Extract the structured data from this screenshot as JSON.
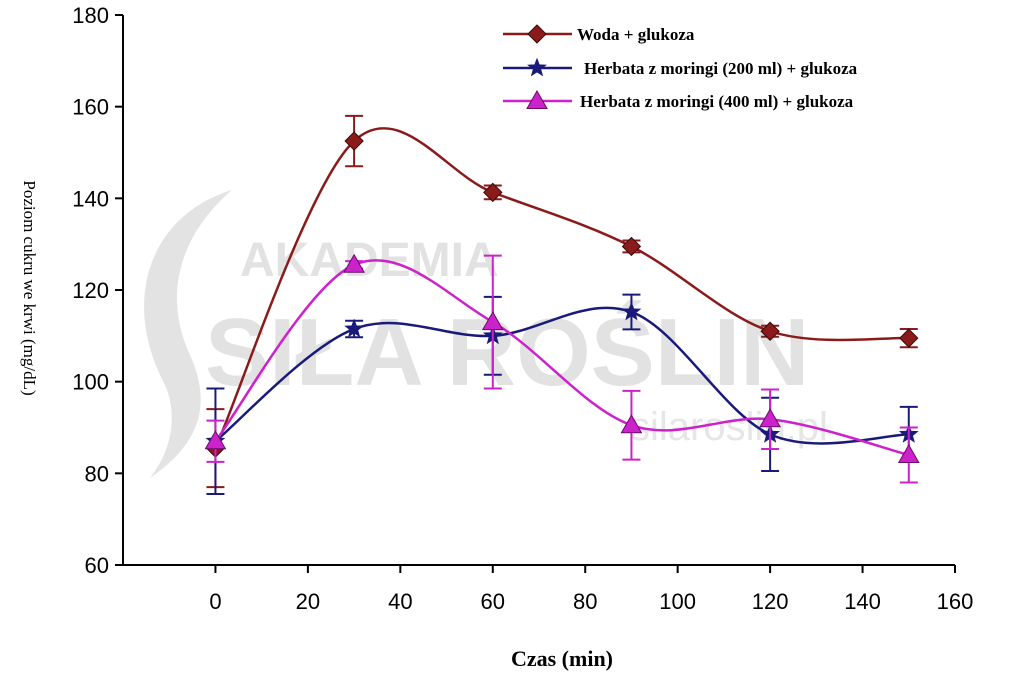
{
  "chart_data": {
    "type": "line",
    "xlabel": "Czas (min)",
    "ylabel": "Poziom cukru we krwi (mg/dL)",
    "xlim": [
      -20,
      160
    ],
    "ylim": [
      60,
      180
    ],
    "xticks": [
      0,
      20,
      40,
      60,
      80,
      100,
      120,
      140,
      160
    ],
    "yticks": [
      60,
      80,
      100,
      120,
      140,
      160,
      180
    ],
    "grid": false,
    "legend_position": "top-right",
    "watermark": {
      "line1": "AKADEMIA",
      "line2": "SIŁA ROŚLIN",
      "line3": "silaroslin.pl"
    },
    "series": [
      {
        "name": "Woda + glukoza",
        "color": "#8b1a1a",
        "marker": "diamond",
        "x": [
          0,
          30,
          60,
          90,
          120,
          150
        ],
        "y": [
          85.5,
          152.5,
          141.3,
          129.5,
          111.0,
          109.5
        ],
        "err": [
          8.5,
          5.5,
          1.5,
          1.3,
          1.2,
          2.0
        ]
      },
      {
        "name": "Herbata z moringi (200 ml) + glukoza",
        "color": "#1a1a7a",
        "marker": "star",
        "x": [
          0,
          30,
          60,
          90,
          120,
          150
        ],
        "y": [
          87.0,
          111.5,
          110.0,
          115.2,
          88.5,
          88.5
        ],
        "err": [
          11.5,
          1.8,
          8.5,
          3.8,
          8.0,
          6.0
        ]
      },
      {
        "name": "Herbata z moringi (400 ml) + glukoza",
        "color": "#cc22cc",
        "marker": "triangle",
        "x": [
          0,
          30,
          60,
          90,
          120,
          150
        ],
        "y": [
          87.0,
          125.5,
          113.0,
          90.5,
          91.8,
          84.0
        ],
        "err": [
          4.5,
          0.8,
          14.5,
          7.5,
          6.5,
          6.0
        ]
      }
    ]
  }
}
